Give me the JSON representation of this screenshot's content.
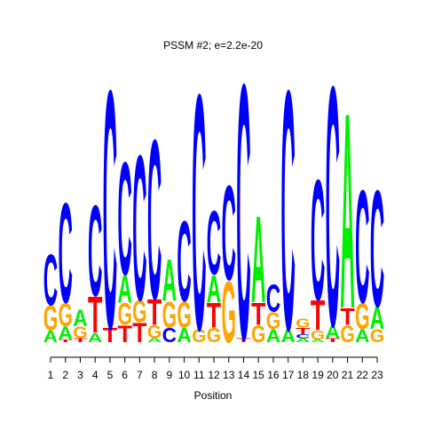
{
  "chart_data": {
    "type": "logo",
    "title": "PSSM #2; e=2.2e-20",
    "title_color": "#e00000",
    "x_label": "Position",
    "categories": [
      1,
      2,
      3,
      4,
      5,
      6,
      7,
      8,
      9,
      10,
      11,
      12,
      13,
      14,
      15,
      16,
      17,
      18,
      19,
      20,
      21,
      22,
      23
    ],
    "ylim": [
      0,
      2
    ],
    "series": [
      {
        "name": "A",
        "color": "#00ee00",
        "values": [
          0.09,
          0.1,
          0.13,
          0.07,
          0,
          0.21,
          0,
          0.03,
          0.32,
          0.11,
          0,
          0.21,
          0,
          0,
          0.67,
          0.1,
          0.1,
          0.03,
          0.02,
          0.1,
          1.51,
          0.1,
          0.17
        ]
      },
      {
        "name": "C",
        "color": "#0000ff",
        "values": [
          0.39,
          0.77,
          0,
          0.7,
          1.84,
          0.87,
          1.12,
          1.23,
          0.11,
          0.62,
          1.82,
          0.49,
          0.73,
          1.97,
          0,
          0.21,
          1.85,
          0.03,
          0.93,
          1.85,
          0,
          0.87,
          0.9
        ]
      },
      {
        "name": "G",
        "color": "#ffa500",
        "values": [
          0.19,
          0.18,
          0.09,
          0,
          0,
          0.17,
          0.17,
          0.1,
          0.2,
          0.2,
          0.1,
          0.11,
          0.47,
          0,
          0.13,
          0.13,
          0,
          0.07,
          0.07,
          0,
          0.13,
          0.2,
          0.1
        ]
      },
      {
        "name": "T",
        "color": "#ff0000",
        "values": [
          0,
          0.02,
          0.03,
          0.28,
          0.11,
          0.13,
          0.15,
          0.2,
          0,
          0,
          0,
          0.19,
          0,
          0.03,
          0.17,
          0,
          0,
          0.05,
          0.23,
          0.03,
          0.13,
          0,
          0
        ]
      }
    ]
  }
}
